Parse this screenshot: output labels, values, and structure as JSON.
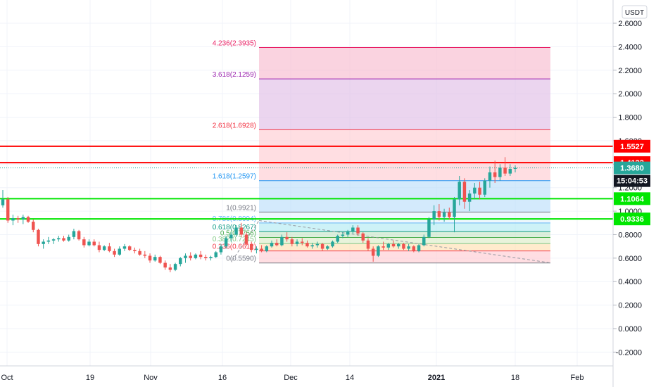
{
  "currency": "USDT",
  "countdown": "15:04:53",
  "colors": {
    "up": "#26a69a",
    "down": "#ef5350",
    "resistance": "#ff0000",
    "support": "#00e600",
    "grid": "#f0f3fa",
    "price_badge": "#26a69a",
    "countdown_badge": "#131722"
  },
  "chart_data": {
    "type": "candlestick",
    "title": "",
    "ylim": [
      -0.3,
      2.7
    ],
    "y_ticks": [
      "2.6000",
      "2.4000",
      "2.2000",
      "2.0000",
      "1.8000",
      "1.6000",
      "1.4000",
      "1.2000",
      "1.0000",
      "0.8000",
      "0.6000",
      "0.4000",
      "0.2000",
      "0.0000",
      "-0.2000"
    ],
    "x_ticks": [
      "Oct",
      "19",
      "Nov",
      "16",
      "Dec",
      "14",
      "2021",
      "18",
      "Feb"
    ],
    "grid": true,
    "current_price": "1.3680",
    "horizontal_lines": [
      {
        "label": "1.5527",
        "value": 1.5527,
        "color": "#ff0000"
      },
      {
        "label": "1.4133",
        "value": 1.4133,
        "color": "#ff0000"
      },
      {
        "label": "1.1064",
        "value": 1.1064,
        "color": "#00e600"
      },
      {
        "label": "0.9336",
        "value": 0.9336,
        "color": "#00e600"
      }
    ],
    "fibonacci": [
      {
        "label": "4.236(2.3935)",
        "value": 2.3935,
        "color": "#e91e63"
      },
      {
        "label": "3.618(2.1259)",
        "value": 2.1259,
        "color": "#9c27b0"
      },
      {
        "label": "2.618(1.6928)",
        "value": 1.6928,
        "color": "#f23645"
      },
      {
        "label": "1.618(1.2597)",
        "value": 1.2597,
        "color": "#2196f3"
      },
      {
        "label": "1(0.9921)",
        "value": 0.9921,
        "color": "#787b86"
      },
      {
        "label": "0.786(0.8994)",
        "value": 0.8994,
        "color": "#64b5f6"
      },
      {
        "label": "0.618(0.8267)",
        "value": 0.8267,
        "color": "#089981"
      },
      {
        "label": "0.5(0.7756)",
        "value": 0.7756,
        "color": "#4caf50"
      },
      {
        "label": "0.382(0.7245)",
        "value": 0.7245,
        "color": "#81c784"
      },
      {
        "label": "0.236(0.6612)",
        "value": 0.6612,
        "color": "#f23645"
      },
      {
        "label": "0(0.5590)",
        "value": 0.559,
        "color": "#787b86"
      }
    ],
    "candles": [
      {
        "o": 1.05,
        "h": 1.18,
        "l": 1.03,
        "c": 1.1
      },
      {
        "o": 1.1,
        "h": 1.12,
        "l": 0.9,
        "c": 0.92
      },
      {
        "o": 0.92,
        "h": 0.97,
        "l": 0.88,
        "c": 0.94
      },
      {
        "o": 0.94,
        "h": 0.96,
        "l": 0.9,
        "c": 0.93
      },
      {
        "o": 0.93,
        "h": 0.97,
        "l": 0.89,
        "c": 0.95
      },
      {
        "o": 0.95,
        "h": 0.96,
        "l": 0.9,
        "c": 0.91
      },
      {
        "o": 0.91,
        "h": 0.93,
        "l": 0.82,
        "c": 0.84
      },
      {
        "o": 0.84,
        "h": 0.85,
        "l": 0.7,
        "c": 0.72
      },
      {
        "o": 0.72,
        "h": 0.76,
        "l": 0.68,
        "c": 0.74
      },
      {
        "o": 0.74,
        "h": 0.78,
        "l": 0.72,
        "c": 0.75
      },
      {
        "o": 0.75,
        "h": 0.77,
        "l": 0.72,
        "c": 0.76
      },
      {
        "o": 0.76,
        "h": 0.79,
        "l": 0.74,
        "c": 0.77
      },
      {
        "o": 0.77,
        "h": 0.79,
        "l": 0.74,
        "c": 0.75
      },
      {
        "o": 0.75,
        "h": 0.8,
        "l": 0.74,
        "c": 0.78
      },
      {
        "o": 0.78,
        "h": 0.85,
        "l": 0.76,
        "c": 0.83
      },
      {
        "o": 0.83,
        "h": 0.84,
        "l": 0.75,
        "c": 0.76
      },
      {
        "o": 0.76,
        "h": 0.78,
        "l": 0.69,
        "c": 0.71
      },
      {
        "o": 0.71,
        "h": 0.76,
        "l": 0.7,
        "c": 0.74
      },
      {
        "o": 0.74,
        "h": 0.76,
        "l": 0.7,
        "c": 0.71
      },
      {
        "o": 0.71,
        "h": 0.74,
        "l": 0.65,
        "c": 0.67
      },
      {
        "o": 0.67,
        "h": 0.71,
        "l": 0.66,
        "c": 0.7
      },
      {
        "o": 0.7,
        "h": 0.73,
        "l": 0.65,
        "c": 0.66
      },
      {
        "o": 0.66,
        "h": 0.68,
        "l": 0.61,
        "c": 0.63
      },
      {
        "o": 0.63,
        "h": 0.7,
        "l": 0.62,
        "c": 0.68
      },
      {
        "o": 0.68,
        "h": 0.72,
        "l": 0.66,
        "c": 0.7
      },
      {
        "o": 0.7,
        "h": 0.71,
        "l": 0.66,
        "c": 0.67
      },
      {
        "o": 0.67,
        "h": 0.69,
        "l": 0.64,
        "c": 0.66
      },
      {
        "o": 0.66,
        "h": 0.68,
        "l": 0.62,
        "c": 0.63
      },
      {
        "o": 0.63,
        "h": 0.66,
        "l": 0.6,
        "c": 0.62
      },
      {
        "o": 0.62,
        "h": 0.64,
        "l": 0.56,
        "c": 0.58
      },
      {
        "o": 0.58,
        "h": 0.63,
        "l": 0.57,
        "c": 0.61
      },
      {
        "o": 0.61,
        "h": 0.62,
        "l": 0.55,
        "c": 0.56
      },
      {
        "o": 0.56,
        "h": 0.58,
        "l": 0.5,
        "c": 0.52
      },
      {
        "o": 0.52,
        "h": 0.55,
        "l": 0.48,
        "c": 0.5
      },
      {
        "o": 0.5,
        "h": 0.56,
        "l": 0.49,
        "c": 0.55
      },
      {
        "o": 0.55,
        "h": 0.61,
        "l": 0.53,
        "c": 0.6
      },
      {
        "o": 0.6,
        "h": 0.64,
        "l": 0.56,
        "c": 0.62
      },
      {
        "o": 0.62,
        "h": 0.65,
        "l": 0.58,
        "c": 0.6
      },
      {
        "o": 0.6,
        "h": 0.64,
        "l": 0.59,
        "c": 0.63
      },
      {
        "o": 0.63,
        "h": 0.66,
        "l": 0.59,
        "c": 0.61
      },
      {
        "o": 0.61,
        "h": 0.63,
        "l": 0.58,
        "c": 0.6
      },
      {
        "o": 0.6,
        "h": 0.62,
        "l": 0.58,
        "c": 0.61
      },
      {
        "o": 0.61,
        "h": 0.66,
        "l": 0.6,
        "c": 0.65
      },
      {
        "o": 0.65,
        "h": 0.72,
        "l": 0.63,
        "c": 0.7
      },
      {
        "o": 0.7,
        "h": 0.79,
        "l": 0.68,
        "c": 0.77
      },
      {
        "o": 0.77,
        "h": 0.82,
        "l": 0.74,
        "c": 0.8
      },
      {
        "o": 0.8,
        "h": 0.88,
        "l": 0.78,
        "c": 0.86
      },
      {
        "o": 0.86,
        "h": 0.9,
        "l": 0.78,
        "c": 0.8
      },
      {
        "o": 0.8,
        "h": 0.82,
        "l": 0.7,
        "c": 0.72
      },
      {
        "o": 0.72,
        "h": 0.74,
        "l": 0.65,
        "c": 0.67
      },
      {
        "o": 0.67,
        "h": 0.7,
        "l": 0.64,
        "c": 0.68
      },
      {
        "o": 0.68,
        "h": 0.71,
        "l": 0.65,
        "c": 0.66
      },
      {
        "o": 0.66,
        "h": 0.71,
        "l": 0.65,
        "c": 0.7
      },
      {
        "o": 0.7,
        "h": 0.75,
        "l": 0.69,
        "c": 0.73
      },
      {
        "o": 0.73,
        "h": 0.76,
        "l": 0.7,
        "c": 0.71
      },
      {
        "o": 0.71,
        "h": 0.8,
        "l": 0.7,
        "c": 0.78
      },
      {
        "o": 0.78,
        "h": 0.82,
        "l": 0.74,
        "c": 0.76
      },
      {
        "o": 0.76,
        "h": 0.78,
        "l": 0.7,
        "c": 0.72
      },
      {
        "o": 0.72,
        "h": 0.76,
        "l": 0.7,
        "c": 0.74
      },
      {
        "o": 0.74,
        "h": 0.77,
        "l": 0.71,
        "c": 0.73
      },
      {
        "o": 0.73,
        "h": 0.75,
        "l": 0.69,
        "c": 0.7
      },
      {
        "o": 0.7,
        "h": 0.73,
        "l": 0.68,
        "c": 0.71
      },
      {
        "o": 0.71,
        "h": 0.74,
        "l": 0.69,
        "c": 0.72
      },
      {
        "o": 0.72,
        "h": 0.73,
        "l": 0.66,
        "c": 0.68
      },
      {
        "o": 0.68,
        "h": 0.71,
        "l": 0.67,
        "c": 0.7
      },
      {
        "o": 0.7,
        "h": 0.75,
        "l": 0.69,
        "c": 0.74
      },
      {
        "o": 0.74,
        "h": 0.8,
        "l": 0.73,
        "c": 0.79
      },
      {
        "o": 0.79,
        "h": 0.82,
        "l": 0.77,
        "c": 0.8
      },
      {
        "o": 0.8,
        "h": 0.84,
        "l": 0.78,
        "c": 0.83
      },
      {
        "o": 0.83,
        "h": 0.88,
        "l": 0.81,
        "c": 0.86
      },
      {
        "o": 0.86,
        "h": 0.88,
        "l": 0.79,
        "c": 0.81
      },
      {
        "o": 0.81,
        "h": 0.82,
        "l": 0.73,
        "c": 0.75
      },
      {
        "o": 0.75,
        "h": 0.77,
        "l": 0.66,
        "c": 0.68
      },
      {
        "o": 0.68,
        "h": 0.7,
        "l": 0.57,
        "c": 0.62
      },
      {
        "o": 0.62,
        "h": 0.71,
        "l": 0.61,
        "c": 0.7
      },
      {
        "o": 0.7,
        "h": 0.74,
        "l": 0.67,
        "c": 0.69
      },
      {
        "o": 0.69,
        "h": 0.73,
        "l": 0.67,
        "c": 0.72
      },
      {
        "o": 0.72,
        "h": 0.75,
        "l": 0.69,
        "c": 0.7
      },
      {
        "o": 0.7,
        "h": 0.73,
        "l": 0.68,
        "c": 0.72
      },
      {
        "o": 0.72,
        "h": 0.73,
        "l": 0.67,
        "c": 0.68
      },
      {
        "o": 0.68,
        "h": 0.72,
        "l": 0.66,
        "c": 0.7
      },
      {
        "o": 0.7,
        "h": 0.71,
        "l": 0.65,
        "c": 0.66
      },
      {
        "o": 0.66,
        "h": 0.72,
        "l": 0.65,
        "c": 0.71
      },
      {
        "o": 0.71,
        "h": 0.8,
        "l": 0.7,
        "c": 0.78
      },
      {
        "o": 0.78,
        "h": 0.95,
        "l": 0.77,
        "c": 0.93
      },
      {
        "o": 0.93,
        "h": 1.05,
        "l": 0.88,
        "c": 1.0
      },
      {
        "o": 1.0,
        "h": 1.06,
        "l": 0.92,
        "c": 0.95
      },
      {
        "o": 0.95,
        "h": 1.02,
        "l": 0.91,
        "c": 0.99
      },
      {
        "o": 0.99,
        "h": 1.03,
        "l": 0.93,
        "c": 0.95
      },
      {
        "o": 0.95,
        "h": 1.12,
        "l": 0.82,
        "c": 1.1
      },
      {
        "o": 1.1,
        "h": 1.3,
        "l": 1.05,
        "c": 1.25
      },
      {
        "o": 1.25,
        "h": 1.28,
        "l": 1.02,
        "c": 1.08
      },
      {
        "o": 1.08,
        "h": 1.18,
        "l": 1.0,
        "c": 1.15
      },
      {
        "o": 1.15,
        "h": 1.24,
        "l": 1.1,
        "c": 1.2
      },
      {
        "o": 1.2,
        "h": 1.25,
        "l": 1.1,
        "c": 1.14
      },
      {
        "o": 1.14,
        "h": 1.28,
        "l": 1.12,
        "c": 1.26
      },
      {
        "o": 1.26,
        "h": 1.38,
        "l": 1.2,
        "c": 1.33
      },
      {
        "o": 1.33,
        "h": 1.43,
        "l": 1.24,
        "c": 1.29
      },
      {
        "o": 1.29,
        "h": 1.4,
        "l": 1.26,
        "c": 1.37
      },
      {
        "o": 1.37,
        "h": 1.46,
        "l": 1.3,
        "c": 1.32
      },
      {
        "o": 1.32,
        "h": 1.4,
        "l": 1.3,
        "c": 1.36
      },
      {
        "o": 1.36,
        "h": 1.39,
        "l": 1.33,
        "c": 1.368
      }
    ]
  }
}
